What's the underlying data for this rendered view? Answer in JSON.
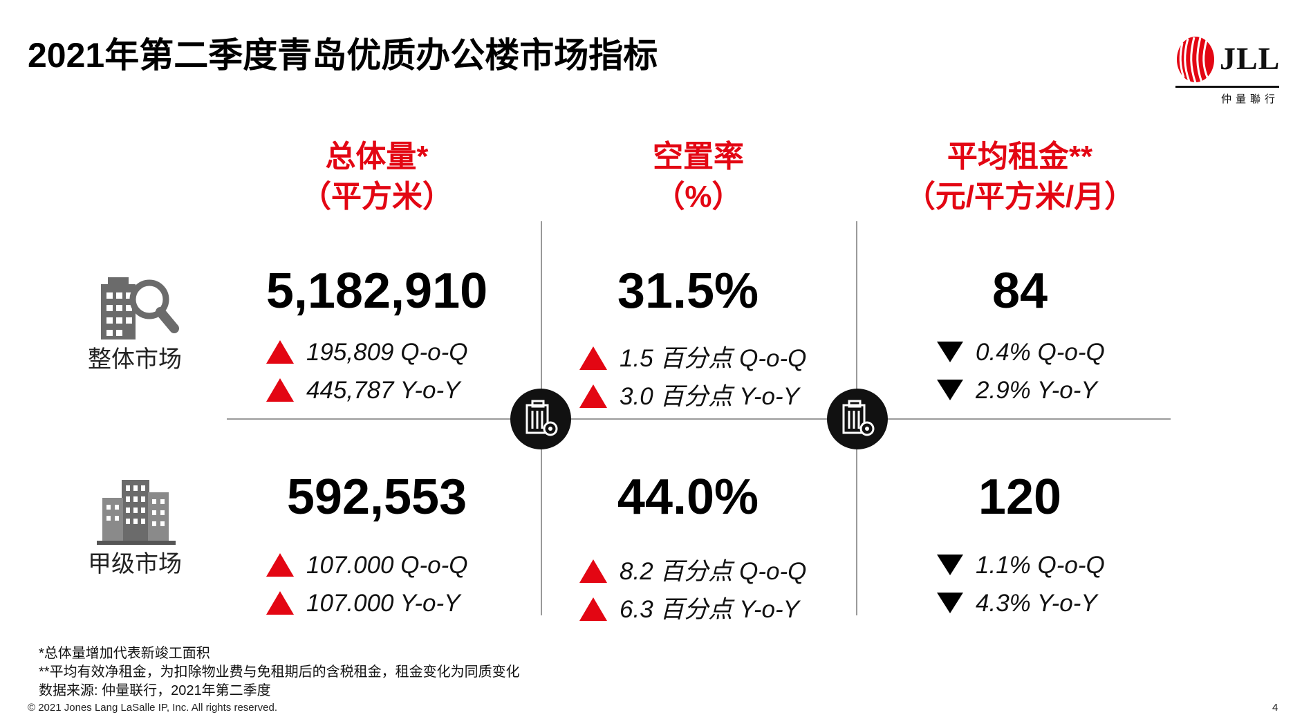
{
  "title": "2021年第二季度青岛优质办公楼市场指标",
  "logo": {
    "text": "JLL",
    "subtitle": "仲量聯行"
  },
  "columns": [
    {
      "label_line1": "总体量*",
      "label_line2": "（平方米）"
    },
    {
      "label_line1": "空置率",
      "label_line2": "（%）"
    },
    {
      "label_line1": "平均租金**",
      "label_line2": "（元/平方米/月）"
    }
  ],
  "rows": [
    {
      "label": "整体市场",
      "icon": "building-search-icon",
      "cells": [
        {
          "value": "5,182,910",
          "qoq": "195,809 Q-o-Q",
          "qoq_dir": "up",
          "yoy": "445,787 Y-o-Y",
          "yoy_dir": "up"
        },
        {
          "value": "31.5%",
          "qoq": "1.5 百分点 Q-o-Q",
          "qoq_dir": "up",
          "yoy": "3.0 百分点 Y-o-Y",
          "yoy_dir": "up"
        },
        {
          "value": "84",
          "qoq": "0.4% Q-o-Q",
          "qoq_dir": "down",
          "yoy": "2.9% Y-o-Y",
          "yoy_dir": "down"
        }
      ]
    },
    {
      "label": "甲级市场",
      "icon": "office-building-icon",
      "cells": [
        {
          "value": "592,553",
          "qoq": "107.000 Q-o-Q",
          "qoq_dir": "up",
          "yoy": "107.000 Y-o-Y",
          "yoy_dir": "up"
        },
        {
          "value": "44.0%",
          "qoq": "8.2 百分点 Q-o-Q",
          "qoq_dir": "up",
          "yoy": "6.3 百分点 Y-o-Y",
          "yoy_dir": "up"
        },
        {
          "value": "120",
          "qoq": "1.1% Q-o-Q",
          "qoq_dir": "down",
          "yoy": "4.3% Y-o-Y",
          "yoy_dir": "down"
        }
      ]
    }
  ],
  "footnotes": [
    "*总体量增加代表新竣工面积",
    "**平均有效净租金，为扣除物业费与免租期后的含税租金，租金变化为同质变化",
    "数据来源: 仲量联行，2021年第二季度"
  ],
  "copyright": "© 2021 Jones Lang LaSalle IP, Inc. All rights reserved.",
  "page_number": "4",
  "colors": {
    "accent": "#e30613",
    "up": "#e30613",
    "down": "#000000",
    "grid": "#9a9a9a"
  }
}
